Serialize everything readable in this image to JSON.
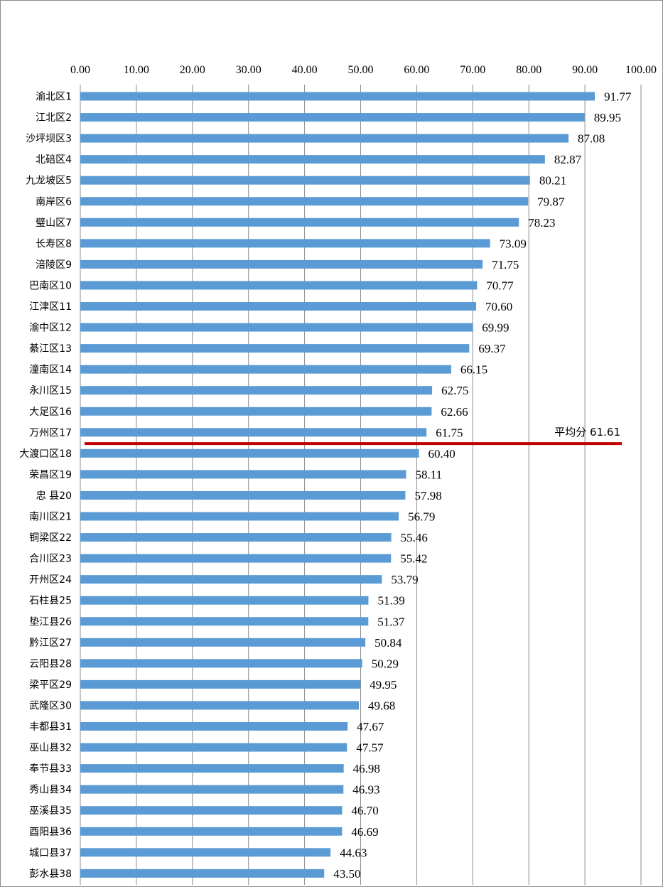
{
  "chart_data": {
    "type": "bar",
    "orientation": "horizontal",
    "title": "",
    "xlabel": "",
    "ylabel": "",
    "xlim": [
      0,
      100
    ],
    "tick_values": [
      0,
      10,
      20,
      30,
      40,
      50,
      60,
      70,
      80,
      90,
      100
    ],
    "tick_labels": [
      "0.00",
      "10.00",
      "20.00",
      "30.00",
      "40.00",
      "50.00",
      "60.00",
      "70.00",
      "80.00",
      "90.00",
      "100.00"
    ],
    "x_axis_position": "top",
    "grid": "vertical",
    "legend": "none",
    "bar_color": "#5b9bd5",
    "categories": [
      "渝北区1",
      "江北区2",
      "沙坪坝区3",
      "北碚区4",
      "九龙坡区5",
      "南岸区6",
      "璧山区7",
      "长寿区8",
      "涪陵区9",
      "巴南区10",
      "江津区11",
      "渝中区12",
      "綦江区13",
      "潼南区14",
      "永川区15",
      "大足区16",
      "万州区17",
      "大渡口区18",
      "荣昌区19",
      "忠 县20",
      "南川区21",
      "铜梁区22",
      "合川区23",
      "开州区24",
      "石柱县25",
      "垫江县26",
      "黔江区27",
      "云阳县28",
      "梁平区29",
      "武隆区30",
      "丰都县31",
      "巫山县32",
      "奉节县33",
      "秀山县34",
      "巫溪县35",
      "酉阳县36",
      "城口县37",
      "彭水县38"
    ],
    "values": [
      91.77,
      89.95,
      87.08,
      82.87,
      80.21,
      79.87,
      78.23,
      73.09,
      71.75,
      70.77,
      70.6,
      69.99,
      69.37,
      66.15,
      62.75,
      62.66,
      61.75,
      60.4,
      58.11,
      57.98,
      56.79,
      55.46,
      55.42,
      53.79,
      51.39,
      51.37,
      50.84,
      50.29,
      49.95,
      49.68,
      47.67,
      47.57,
      46.98,
      46.93,
      46.7,
      46.69,
      44.63,
      43.5
    ],
    "value_labels": [
      "91.77",
      "89.95",
      "87.08",
      "82.87",
      "80.21",
      "79.87",
      "78.23",
      "73.09",
      "71.75",
      "70.77",
      "70.60",
      "69.99",
      "69.37",
      "66.15",
      "62.75",
      "62.66",
      "61.75",
      "60.40",
      "58.11",
      "57.98",
      "56.79",
      "55.46",
      "55.42",
      "53.79",
      "51.39",
      "51.37",
      "50.84",
      "50.29",
      "49.95",
      "49.68",
      "47.67",
      "47.57",
      "46.98",
      "46.93",
      "46.70",
      "46.69",
      "44.63",
      "43.50"
    ],
    "average_line": {
      "label": "平均分 61.61",
      "value": 61.61,
      "color": "#c00000"
    }
  }
}
